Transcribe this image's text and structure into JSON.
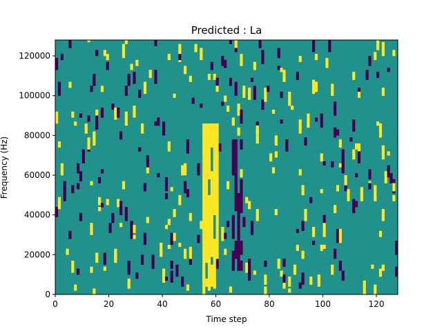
{
  "chart_data": {
    "type": "heatmap",
    "title": "Predicted : La",
    "xlabel": "Time step",
    "ylabel": "Frequency (Hz)",
    "xlim": [
      0,
      128
    ],
    "ylim": [
      0,
      128000
    ],
    "xticks": [
      0,
      20,
      40,
      60,
      80,
      100,
      120
    ],
    "yticks": [
      0,
      20000,
      40000,
      60000,
      80000,
      100000,
      120000
    ],
    "xtick_labels": [
      "0",
      "20",
      "40",
      "60",
      "80",
      "100",
      "120"
    ],
    "ytick_labels": [
      "0",
      "20000",
      "40000",
      "60000",
      "80000",
      "100000",
      "120000"
    ],
    "colormap": {
      "low": "#440154",
      "mid": "#21918c",
      "high": "#fde725"
    },
    "background_level": "mid",
    "time_steps": 128,
    "frequency_bins": 128,
    "dense_columns": [
      {
        "x": [
          55,
          60
        ],
        "y_range": [
          4000,
          86000
        ],
        "level": "high"
      },
      {
        "x": [
          66,
          69
        ],
        "y_range": [
          12000,
          78000
        ],
        "level": "low"
      }
    ],
    "sample_cells": [
      {
        "t": 2,
        "f": 118000,
        "level": "low"
      },
      {
        "t": 15,
        "f": 120000,
        "level": "low"
      },
      {
        "t": 18,
        "f": 120000,
        "level": "high"
      },
      {
        "t": 42,
        "f": 118000,
        "level": "high"
      },
      {
        "t": 46,
        "f": 118000,
        "level": "low"
      },
      {
        "t": 57,
        "f": 108000,
        "level": "high"
      },
      {
        "t": 60,
        "f": 102000,
        "level": "high"
      },
      {
        "t": 74,
        "f": 102000,
        "level": "low"
      },
      {
        "t": 78,
        "f": 14000,
        "level": "low"
      },
      {
        "t": 126,
        "f": 120000,
        "level": "high"
      },
      {
        "t": 8,
        "f": 10000,
        "level": "low"
      },
      {
        "t": 49,
        "f": 2000,
        "level": "high"
      },
      {
        "t": 95,
        "f": 46000,
        "level": "low"
      },
      {
        "t": 122,
        "f": 12000,
        "level": "high"
      }
    ]
  }
}
